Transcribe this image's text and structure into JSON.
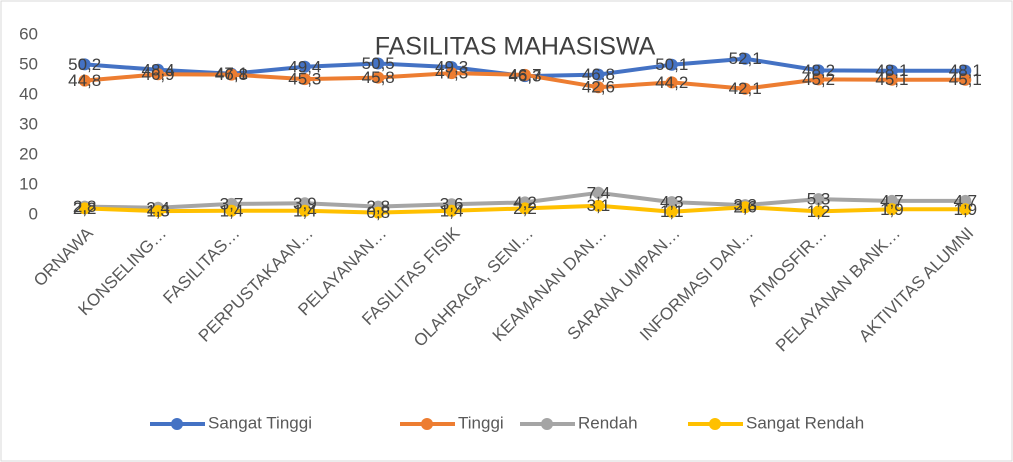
{
  "chart_data": {
    "type": "line",
    "title": "FASILITAS MAHASISWA",
    "categories": [
      "ORNAWA",
      "KONSELING…",
      "FASILITAS…",
      "PERPUSTAKAAN…",
      "PELAYANAN…",
      "FASILITAS FISIK",
      "OLAHRAGA, SENI…",
      "KEAMANAN DAN…",
      "SARANA UMPAN…",
      "INFORMASI DAN…",
      "ATMOSFIR…",
      "PELAYANAN BANK…",
      "AKTIVITAS ALUMNI"
    ],
    "series": [
      {
        "name": "Sangat Tinggi",
        "color": "#4472c4",
        "values": [
          50.2,
          48.4,
          47.1,
          49.4,
          50.5,
          49.3,
          46.3,
          46.8,
          50.1,
          52.1,
          48.2,
          48.1,
          48.1
        ],
        "value_labels": [
          "50,2",
          "48,4",
          "47,1",
          "49,4",
          "50,5",
          "49,3",
          "46,3",
          "46,8",
          "50,1",
          "52,1",
          "48,2",
          "48,1",
          "48,1"
        ]
      },
      {
        "name": "Tinggi",
        "color": "#ed7d31",
        "values": [
          44.8,
          46.9,
          46.8,
          45.3,
          45.8,
          47.3,
          46.7,
          42.6,
          44.2,
          42.1,
          45.2,
          45.1,
          45.1
        ],
        "value_labels": [
          "44,8",
          "46,9",
          "46,8",
          "45,3",
          "45,8",
          "47,3",
          "46,7",
          "42,6",
          "44,2",
          "42,1",
          "45,2",
          "45,1",
          "45,1"
        ]
      },
      {
        "name": "Rendah",
        "color": "#a5a5a5",
        "values": [
          2.8,
          2.4,
          3.7,
          3.9,
          2.8,
          3.6,
          4.2,
          7.4,
          4.3,
          3.3,
          5.3,
          4.7,
          4.7
        ],
        "value_labels": [
          "2,8",
          "2,4",
          "3,7",
          "3,9",
          "2,8",
          "3,6",
          "4,2",
          "7,4",
          "4,3",
          "3,3",
          "5,3",
          "4,7",
          "4,7"
        ]
      },
      {
        "name": "Sangat Rendah",
        "color": "#ffc000",
        "values": [
          2.2,
          1.3,
          1.4,
          1.4,
          0.8,
          1.4,
          2.2,
          3.1,
          1.1,
          2.6,
          1.2,
          1.9,
          1.9
        ],
        "value_labels": [
          "2,2",
          "1,3",
          "1,4",
          "1,4",
          "0,8",
          "1,4",
          "2,2",
          "3,1",
          "1,1",
          "2,6",
          "1,2",
          "1,9",
          "1,9"
        ]
      }
    ],
    "ylim": [
      0,
      60
    ],
    "yticks": [
      0,
      10,
      20,
      30,
      40,
      50,
      60
    ],
    "grid": false,
    "legend": "bottom"
  }
}
